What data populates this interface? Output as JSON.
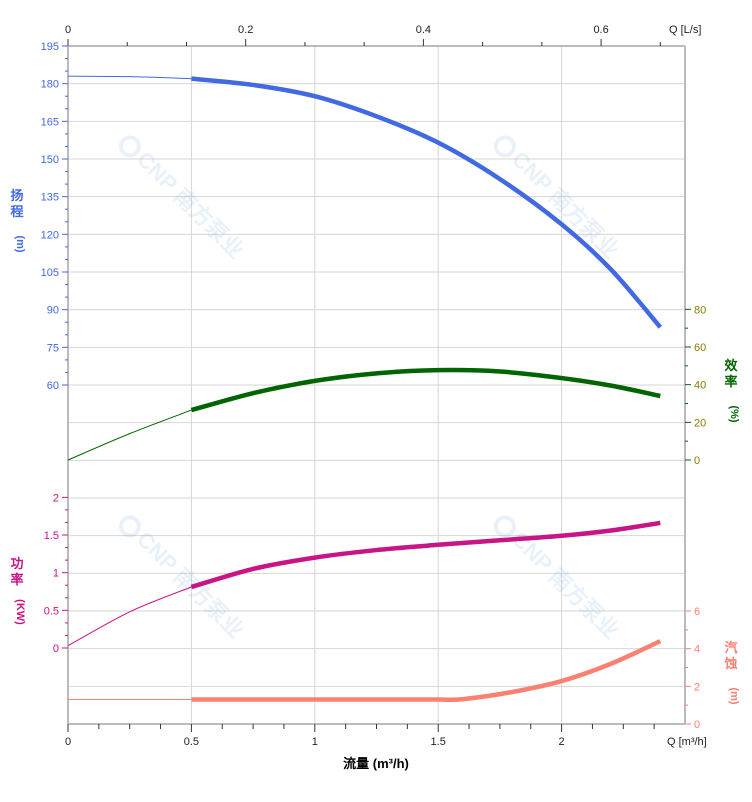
{
  "chart_data": {
    "type": "line",
    "x_axis": {
      "label": "流量 (m³/h)",
      "unit_label": "Q [m³/h]",
      "range": [
        0,
        2.5
      ],
      "ticks": [
        "0",
        "0.5",
        "1",
        "1.5",
        "2"
      ],
      "tick_values": [
        0,
        0.5,
        1,
        1.5,
        2
      ]
    },
    "x2_axis": {
      "unit_label": "Q [L/s]",
      "ticks": [
        "0",
        "0.2",
        "0.4",
        "0.6"
      ],
      "tick_values": [
        0,
        0.2,
        0.4,
        0.6
      ]
    },
    "grid": true,
    "axes": {
      "head": {
        "label": "扬程",
        "unit": "(m)",
        "color": "#4169e1",
        "range": [
          30,
          195
        ],
        "ticks": [
          "195",
          "180",
          "165",
          "150",
          "135",
          "120",
          "105",
          "90",
          "75",
          "60"
        ],
        "tick_values": [
          195,
          180,
          165,
          150,
          135,
          120,
          105,
          90,
          75,
          60
        ]
      },
      "efficiency": {
        "label": "效率",
        "unit": "(%)",
        "color": "#006400",
        "range": [
          0,
          100
        ],
        "ticks": [
          "80",
          "60",
          "40",
          "20",
          "0"
        ],
        "tick_values": [
          80,
          60,
          40,
          20,
          0
        ]
      },
      "power": {
        "label": "功率",
        "unit": "(KW)",
        "color": "#c71585",
        "range": [
          -2,
          2.5
        ],
        "ticks": [
          "2",
          "1.5",
          "1",
          "0.5",
          "0"
        ],
        "tick_values": [
          2,
          1.5,
          1,
          0.5,
          0
        ]
      },
      "npsh": {
        "label": "汽蚀",
        "unit": "(m)",
        "color": "#fa8072",
        "range": [
          0,
          8
        ],
        "ticks": [
          "6",
          "4",
          "2",
          "0"
        ],
        "tick_values": [
          6,
          4,
          2,
          0
        ]
      }
    },
    "operating_range": [
      0.5,
      2.4
    ],
    "series": [
      {
        "axis": "head",
        "x": [
          0,
          0.25,
          0.5,
          0.75,
          1,
          1.25,
          1.5,
          1.75,
          2,
          2.2,
          2.4
        ],
        "y": [
          183,
          182.8,
          182,
          179.5,
          175,
          167,
          156.5,
          142,
          124,
          106,
          83
        ]
      },
      {
        "axis": "efficiency",
        "x": [
          0,
          0.25,
          0.5,
          0.75,
          1,
          1.25,
          1.5,
          1.75,
          2,
          2.2,
          2.4
        ],
        "y": [
          0,
          14,
          26.5,
          35.5,
          42,
          46,
          47.7,
          47,
          43.5,
          39.5,
          34
        ]
      },
      {
        "axis": "power",
        "x": [
          0,
          0.25,
          0.5,
          0.75,
          1,
          1.25,
          1.5,
          1.75,
          2,
          2.2,
          2.4
        ],
        "y": [
          0.03,
          0.48,
          0.81,
          1.05,
          1.2,
          1.3,
          1.37,
          1.43,
          1.49,
          1.56,
          1.66
        ]
      },
      {
        "axis": "npsh",
        "x": [
          0,
          0.25,
          0.5,
          0.75,
          1,
          1.25,
          1.5,
          1.6,
          1.8,
          2,
          2.2,
          2.4
        ],
        "y": [
          1.3,
          1.3,
          1.3,
          1.3,
          1.3,
          1.3,
          1.3,
          1.32,
          1.7,
          2.28,
          3.2,
          4.4
        ]
      }
    ]
  },
  "watermark": "CNP 南方泵业"
}
